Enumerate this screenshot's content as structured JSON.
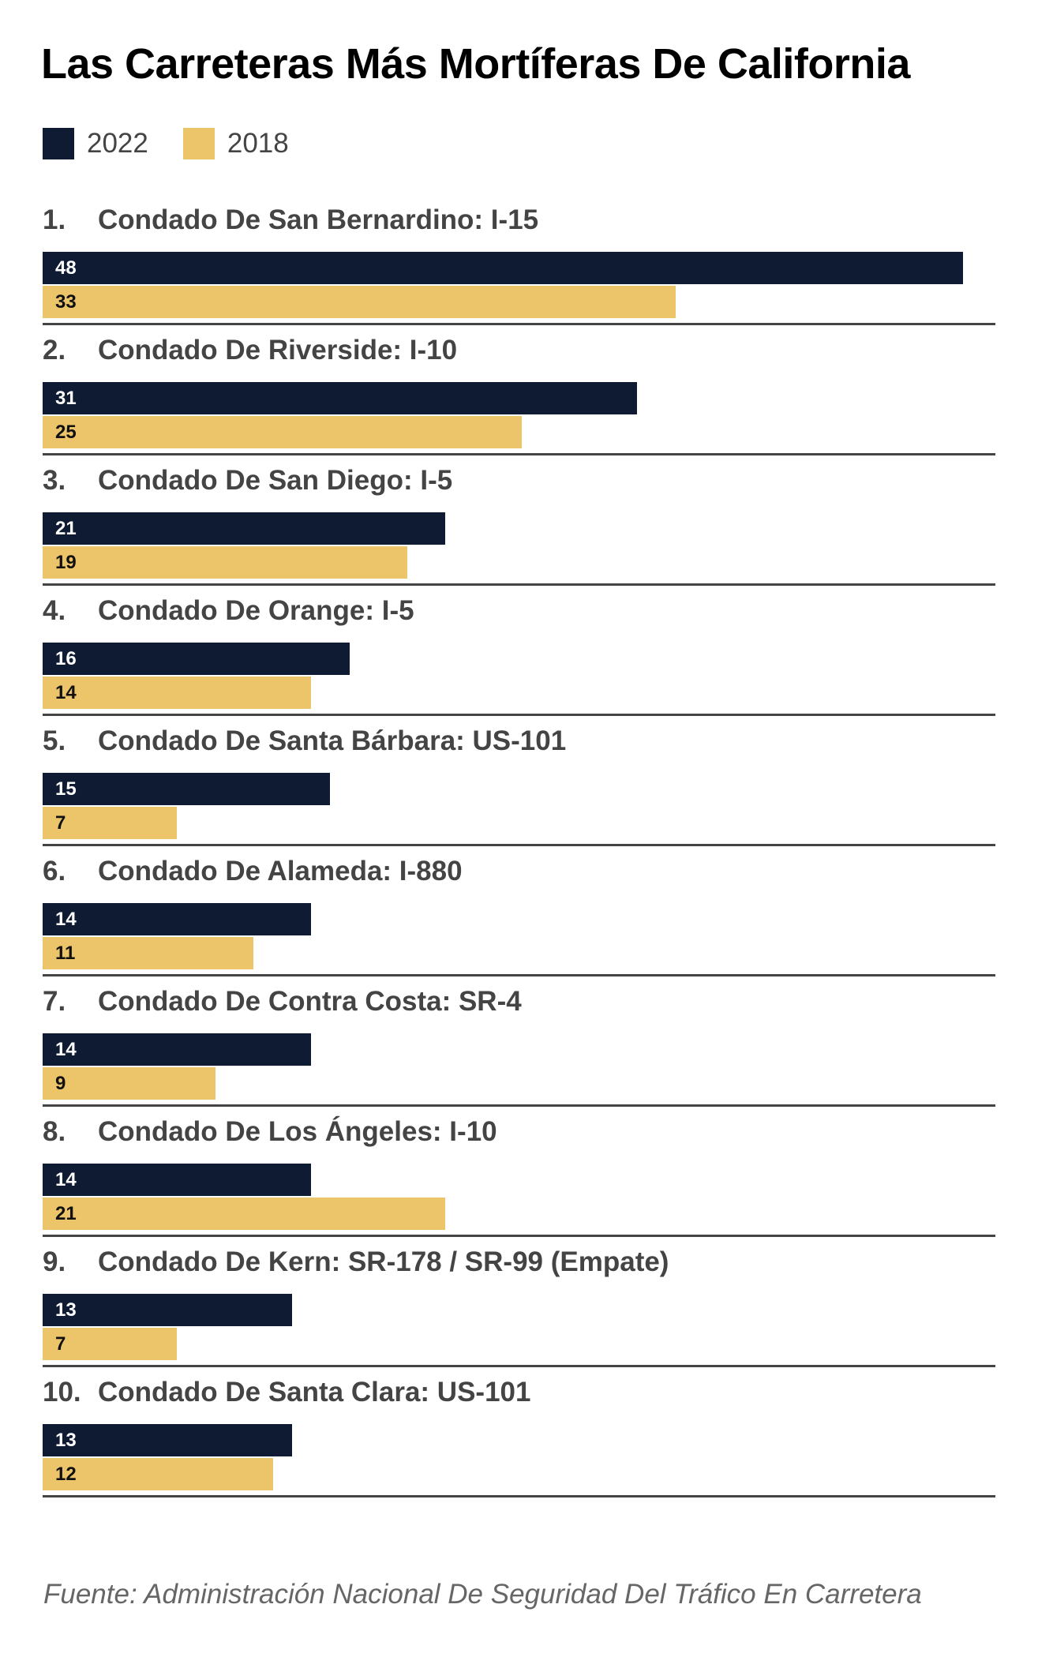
{
  "chart_data": {
    "type": "bar",
    "orientation": "horizontal",
    "title": "Las Carreteras Más Mortíferas De California",
    "legend": [
      {
        "name": "2022",
        "color": "#0e1b33"
      },
      {
        "name": "2018",
        "color": "#ecc46a"
      }
    ],
    "legend_placement": "top-left",
    "categories": [
      {
        "rank": "1.",
        "label": "Condado De San Bernardino: I-15"
      },
      {
        "rank": "2.",
        "label": "Condado De Riverside: I-10"
      },
      {
        "rank": "3.",
        "label": "Condado De San Diego: I-5"
      },
      {
        "rank": "4.",
        "label": "Condado De Orange: I-5"
      },
      {
        "rank": "5.",
        "label": "Condado De Santa Bárbara: US-101"
      },
      {
        "rank": "6.",
        "label": "Condado De Alameda: I-880"
      },
      {
        "rank": "7.",
        "label": "Condado De Contra Costa: SR-4"
      },
      {
        "rank": "8.",
        "label": "Condado De Los Ángeles: I-10"
      },
      {
        "rank": "9.",
        "label": "Condado De Kern: SR-178 / SR-99 (Empate)"
      },
      {
        "rank": "10.",
        "label": "Condado De Santa Clara: US-101"
      }
    ],
    "series": [
      {
        "name": "2022",
        "values": [
          48,
          31,
          21,
          16,
          15,
          14,
          14,
          14,
          13,
          13
        ]
      },
      {
        "name": "2018",
        "values": [
          33,
          25,
          19,
          14,
          7,
          11,
          9,
          21,
          7,
          12
        ]
      }
    ],
    "xlim": [
      0,
      48
    ],
    "grid": false,
    "source": "Fuente: Administración Nacional De Seguridad Del Tráfico En Carretera"
  }
}
